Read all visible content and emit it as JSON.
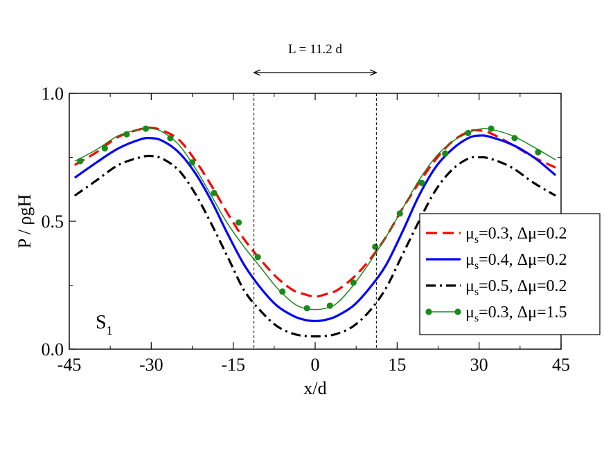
{
  "chart_data": {
    "type": "line",
    "title": "",
    "xlabel": "x/d",
    "ylabel": "P / ρgH",
    "xlim": [
      -45,
      45
    ],
    "ylim": [
      0.0,
      1.0
    ],
    "xticks": [
      -45,
      -30,
      -15,
      0,
      15,
      30,
      45
    ],
    "xtick_labels": [
      "-45",
      "-30",
      "-15",
      "0",
      "15",
      "30",
      "45"
    ],
    "yticks": [
      0.0,
      0.5,
      1.0
    ],
    "ytick_labels": [
      "0.0",
      "0.5",
      "1.0"
    ],
    "grid": false,
    "legend_position": "right",
    "panel_label": {
      "main": "S",
      "sub": "1"
    },
    "annotation": {
      "text": "L = 11.2 d",
      "from": -11.2,
      "to": 11.2
    },
    "vlines": [
      -11.2,
      11.2
    ],
    "series": [
      {
        "name": "μs=0.3, Δμ=0.2",
        "legend": {
          "mu": "μ",
          "sub": "s",
          "rest": "=0.3, Δμ=0.2"
        },
        "color": "#ff0000",
        "style": "dashed",
        "markers": false,
        "x": [
          -44,
          -40,
          -36,
          -32,
          -30,
          -28,
          -25,
          -22,
          -19,
          -16,
          -13,
          -10,
          -7,
          -4,
          -2,
          0,
          2,
          4,
          7,
          10,
          13,
          16,
          19,
          22,
          25,
          28,
          30,
          32,
          36,
          40,
          44
        ],
        "y": [
          0.72,
          0.77,
          0.83,
          0.86,
          0.865,
          0.855,
          0.82,
          0.74,
          0.64,
          0.53,
          0.43,
          0.35,
          0.28,
          0.23,
          0.215,
          0.205,
          0.215,
          0.23,
          0.28,
          0.35,
          0.44,
          0.55,
          0.65,
          0.74,
          0.81,
          0.85,
          0.855,
          0.845,
          0.8,
          0.75,
          0.71
        ]
      },
      {
        "name": "μs=0.4, Δμ=0.2",
        "legend": {
          "mu": "μ",
          "sub": "s",
          "rest": "=0.4, Δμ=0.2"
        },
        "color": "#0000ff",
        "style": "solid",
        "markers": false,
        "x": [
          -44,
          -40,
          -36,
          -32,
          -30,
          -28,
          -25,
          -22,
          -19,
          -16,
          -13,
          -10,
          -7,
          -4,
          -2,
          0,
          2,
          4,
          7,
          10,
          13,
          16,
          19,
          22,
          25,
          28,
          30,
          32,
          36,
          40,
          44
        ],
        "y": [
          0.67,
          0.73,
          0.785,
          0.82,
          0.825,
          0.815,
          0.77,
          0.69,
          0.58,
          0.45,
          0.33,
          0.24,
          0.17,
          0.13,
          0.115,
          0.11,
          0.115,
          0.13,
          0.17,
          0.24,
          0.33,
          0.46,
          0.6,
          0.71,
          0.78,
          0.825,
          0.835,
          0.83,
          0.8,
          0.75,
          0.68
        ]
      },
      {
        "name": "μs=0.5, Δμ=0.2",
        "legend": {
          "mu": "μ",
          "sub": "s",
          "rest": "=0.5, Δμ=0.2"
        },
        "color": "#000000",
        "style": "dashdot",
        "markers": false,
        "x": [
          -44,
          -40,
          -36,
          -32,
          -30,
          -28,
          -25,
          -22,
          -19,
          -16,
          -13,
          -10,
          -7,
          -4,
          -2,
          0,
          2,
          4,
          7,
          10,
          13,
          16,
          19,
          22,
          25,
          28,
          30,
          32,
          36,
          40,
          44
        ],
        "y": [
          0.6,
          0.66,
          0.72,
          0.75,
          0.755,
          0.745,
          0.7,
          0.61,
          0.49,
          0.36,
          0.23,
          0.15,
          0.09,
          0.06,
          0.052,
          0.05,
          0.052,
          0.06,
          0.09,
          0.15,
          0.24,
          0.37,
          0.5,
          0.62,
          0.7,
          0.745,
          0.75,
          0.745,
          0.71,
          0.65,
          0.6
        ]
      },
      {
        "name": "μs=0.3, Δμ=1.5",
        "legend": {
          "mu": "μ",
          "sub": "s",
          "rest": "=0.3, Δμ=1.5"
        },
        "color": "#1a8a1a",
        "style": "solid",
        "markers": true,
        "x": [
          -44,
          -40,
          -36,
          -32,
          -30,
          -28,
          -25,
          -22,
          -19,
          -16,
          -13,
          -10,
          -7,
          -4,
          -2,
          0,
          2,
          4,
          7,
          10,
          13,
          16,
          19,
          22,
          25,
          28,
          30,
          32,
          36,
          40,
          44
        ],
        "y": [
          0.735,
          0.78,
          0.835,
          0.86,
          0.862,
          0.85,
          0.8,
          0.71,
          0.6,
          0.49,
          0.4,
          0.32,
          0.24,
          0.18,
          0.16,
          0.155,
          0.16,
          0.18,
          0.25,
          0.34,
          0.44,
          0.55,
          0.66,
          0.75,
          0.81,
          0.845,
          0.86,
          0.86,
          0.835,
          0.79,
          0.74
        ],
        "marker_x": [
          -43,
          -38.5,
          -34.5,
          -31,
          -26.5,
          -22.5,
          -18.5,
          -14,
          -10.5,
          -6,
          -1.5,
          2.7,
          7,
          11,
          15.5,
          19.5,
          23.8,
          28,
          32.2,
          36.5,
          40.8
        ],
        "marker_y": [
          0.735,
          0.785,
          0.84,
          0.862,
          0.825,
          0.73,
          0.61,
          0.495,
          0.36,
          0.225,
          0.16,
          0.17,
          0.26,
          0.4,
          0.53,
          0.65,
          0.765,
          0.845,
          0.862,
          0.825,
          0.77
        ]
      }
    ]
  }
}
